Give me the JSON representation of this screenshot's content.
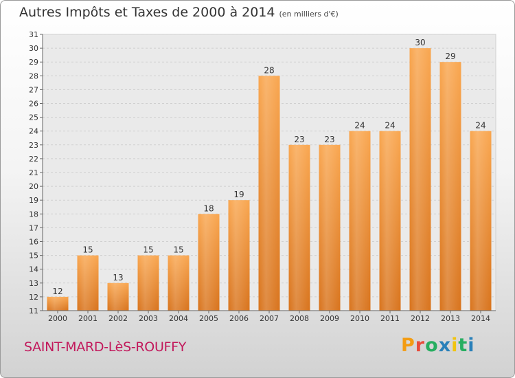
{
  "header": {
    "title": "Autres Impôts et Taxes de 2000 à 2014",
    "subtitle": "(en milliers d'€)"
  },
  "footer": {
    "town": "SAINT-MARD-LèS-ROUFFY",
    "brand_letters": [
      "P",
      "r",
      "o",
      "x",
      "i",
      "t",
      "i"
    ],
    "brand_colors": [
      "#f39c12",
      "#e74c3c",
      "#27ae60",
      "#2980b9",
      "#f1c40f",
      "#27ae60",
      "#2980b9"
    ]
  },
  "chart_data": {
    "type": "bar",
    "categories": [
      "2000",
      "2001",
      "2002",
      "2003",
      "2004",
      "2005",
      "2006",
      "2007",
      "2008",
      "2009",
      "2010",
      "2011",
      "2012",
      "2013",
      "2014"
    ],
    "values": [
      12,
      15,
      13,
      15,
      15,
      18,
      19,
      28,
      23,
      23,
      24,
      24,
      30,
      29,
      24
    ],
    "ylim": [
      11,
      31
    ],
    "yticks": [
      11,
      12,
      13,
      14,
      15,
      16,
      17,
      18,
      19,
      20,
      21,
      22,
      23,
      24,
      25,
      26,
      27,
      28,
      29,
      30,
      31
    ],
    "grid": true,
    "bar_color": "#f08a2c"
  }
}
